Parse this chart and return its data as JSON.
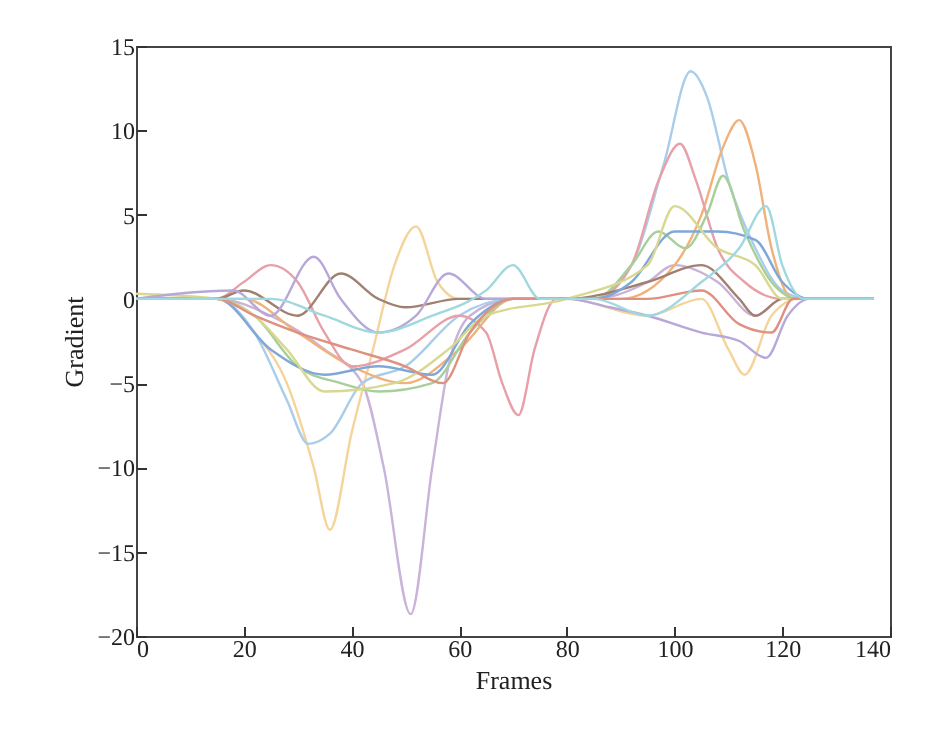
{
  "chart_data": {
    "type": "line",
    "xlabel": "Frames",
    "ylabel": "Gradient",
    "xlim": [
      0,
      140
    ],
    "ylim": [
      -20,
      15
    ],
    "xticks": [
      0,
      20,
      40,
      60,
      80,
      100,
      120,
      140
    ],
    "yticks": [
      -20,
      -15,
      -10,
      -5,
      0,
      5,
      10,
      15
    ],
    "series": [
      {
        "color": "#c9b3d9",
        "x": [
          0,
          15,
          25,
          35,
          42,
          46,
          51,
          55,
          58,
          62,
          70,
          85,
          95,
          100,
          108,
          115,
          120,
          137
        ],
        "values": [
          0,
          0,
          -1,
          -3,
          -5,
          -10,
          -18.7,
          -10,
          -4,
          -1,
          0,
          0,
          1,
          2,
          1,
          -1,
          0,
          0
        ]
      },
      {
        "color": "#f5d49a",
        "x": [
          0,
          15,
          22,
          28,
          33,
          36,
          40,
          44,
          48,
          52,
          56,
          60,
          80,
          95,
          105,
          110,
          113,
          118,
          123,
          137
        ],
        "values": [
          0,
          0,
          -2,
          -5,
          -10,
          -13.7,
          -8,
          -3,
          2,
          4.3,
          1,
          0,
          0,
          -1,
          0,
          -3,
          -4.5,
          -1,
          0,
          0
        ]
      },
      {
        "color": "#a9cdea",
        "x": [
          0,
          15,
          22,
          28,
          32,
          36,
          42,
          50,
          60,
          70,
          85,
          92,
          98,
          103,
          106,
          110,
          115,
          120,
          125,
          137
        ],
        "values": [
          0,
          0,
          -2,
          -6,
          -8.6,
          -8,
          -5,
          -4,
          -1,
          0,
          0,
          2,
          8,
          13.5,
          12,
          7,
          3,
          0.5,
          0,
          0
        ]
      },
      {
        "color": "#f0b27a",
        "x": [
          0,
          20,
          30,
          40,
          50,
          60,
          70,
          90,
          100,
          105,
          109,
          112,
          115,
          118,
          122,
          137
        ],
        "values": [
          0,
          0,
          -2,
          -4,
          -5,
          -3,
          0,
          0,
          2,
          5,
          9,
          10.6,
          8,
          3,
          0,
          0
        ]
      },
      {
        "color": "#e8a0a8",
        "x": [
          0,
          15,
          20,
          25,
          30,
          35,
          40,
          50,
          60,
          65,
          68,
          71,
          74,
          78,
          85,
          92,
          97,
          101,
          104,
          108,
          113,
          120,
          137
        ],
        "values": [
          0,
          0,
          1,
          2,
          1,
          -2,
          -4,
          -3,
          -1,
          -2,
          -5,
          -6.9,
          -3,
          0,
          0,
          2,
          7,
          9.2,
          7,
          3,
          1,
          0,
          0
        ]
      },
      {
        "color": "#a8cf9a",
        "x": [
          0,
          15,
          22,
          30,
          38,
          45,
          55,
          62,
          70,
          85,
          92,
          97,
          102,
          106,
          109,
          113,
          118,
          123,
          137
        ],
        "values": [
          0,
          0,
          -1,
          -4,
          -5,
          -5.5,
          -5,
          -2,
          0,
          0,
          2,
          4,
          3,
          5,
          7.3,
          4,
          1,
          0,
          0
        ]
      },
      {
        "color": "#a08070",
        "x": [
          0,
          15,
          20,
          30,
          38,
          45,
          50,
          60,
          80,
          95,
          105,
          112,
          115,
          120,
          137
        ],
        "values": [
          0,
          0,
          0.5,
          -1,
          1.5,
          0,
          -0.5,
          0,
          0,
          1,
          2,
          0,
          -1,
          0,
          0
        ]
      },
      {
        "color": "#7fa8d8",
        "x": [
          0,
          15,
          25,
          35,
          45,
          55,
          62,
          70,
          85,
          92,
          100,
          108,
          115,
          120,
          125,
          137
        ],
        "values": [
          0,
          0,
          -3,
          -4.5,
          -4,
          -4.5,
          -1.5,
          0,
          0,
          1,
          4,
          4,
          3.5,
          1,
          0,
          0
        ]
      },
      {
        "color": "#d8d890",
        "x": [
          0,
          15,
          22,
          28,
          35,
          48,
          58,
          65,
          80,
          95,
          100,
          108,
          115,
          120,
          137
        ],
        "values": [
          0.3,
          0,
          -1,
          -3,
          -5.5,
          -5,
          -3,
          -1,
          0,
          2,
          5.5,
          3,
          2,
          0,
          0
        ]
      },
      {
        "color": "#b8a8d8",
        "x": [
          0,
          18,
          25,
          33,
          38,
          45,
          52,
          58,
          65,
          80,
          88,
          95,
          105,
          112,
          117,
          121,
          125,
          137
        ],
        "values": [
          0,
          0.5,
          -1,
          2.5,
          0,
          -2,
          -1,
          1.5,
          0,
          0,
          -0.5,
          -1,
          -2,
          -2.5,
          -3.5,
          -1,
          0,
          0
        ]
      },
      {
        "color": "#e09080",
        "x": [
          0,
          15,
          22,
          30,
          40,
          50,
          57,
          62,
          70,
          85,
          95,
          105,
          112,
          118,
          122,
          137
        ],
        "values": [
          0,
          0,
          -1,
          -2,
          -3,
          -4,
          -5,
          -2,
          0,
          0,
          0,
          0.5,
          -1.5,
          -2,
          0,
          0
        ]
      },
      {
        "color": "#a0d8e0",
        "x": [
          0,
          15,
          25,
          35,
          45,
          55,
          65,
          70,
          75,
          85,
          95,
          105,
          112,
          117,
          120,
          124,
          137
        ],
        "values": [
          0,
          0,
          0,
          -1,
          -2,
          -1,
          0.5,
          2,
          0,
          0,
          -1,
          1,
          3,
          5.5,
          2,
          0,
          0
        ]
      }
    ]
  }
}
